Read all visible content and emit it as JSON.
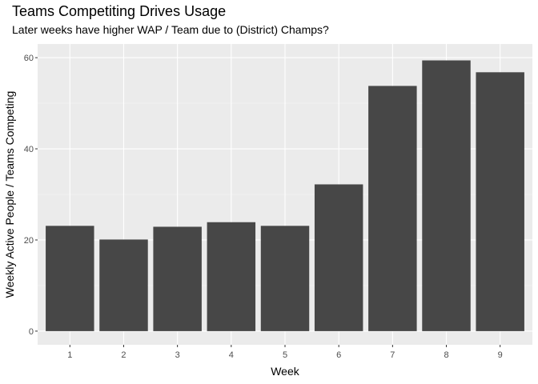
{
  "chart_data": {
    "type": "bar",
    "title": "Teams Competiting Drives Usage",
    "subtitle": "Later weeks have higher WAP / Team due to (District) Champs?",
    "xlabel": "Week",
    "ylabel": "Weekly Active People / Teams Competing",
    "categories": [
      "1",
      "2",
      "3",
      "4",
      "5",
      "6",
      "7",
      "8",
      "9"
    ],
    "values": [
      23.1,
      20.1,
      22.9,
      23.9,
      23.1,
      32.2,
      53.8,
      59.4,
      56.8
    ],
    "ylim": [
      -3,
      63
    ],
    "yticks": [
      0,
      20,
      40,
      60
    ],
    "grid": true,
    "colors": {
      "bar": "#474747",
      "panel": "#ebebeb",
      "grid_major": "#ffffff",
      "grid_minor": "#f5f5f5"
    }
  }
}
